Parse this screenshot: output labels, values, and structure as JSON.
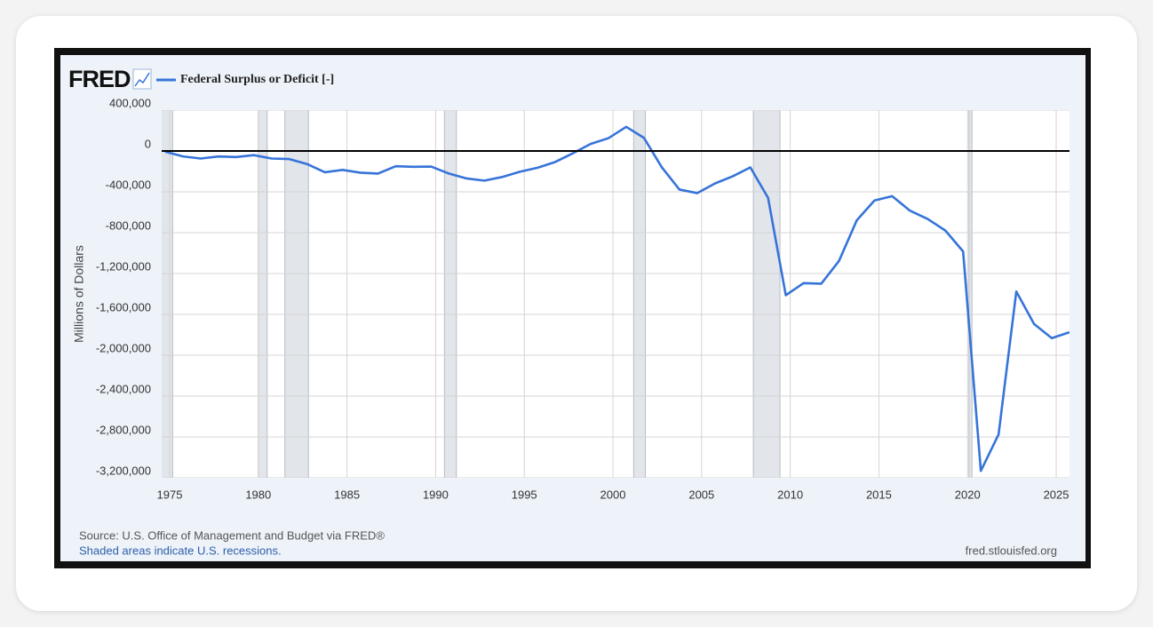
{
  "chart_data": {
    "type": "line",
    "logo": "FRED",
    "y_axis_label": "Millions of Dollars",
    "source": "Source: U.S. Office of Management and Budget via FRED®",
    "note": "Shaded areas indicate U.S. recessions.",
    "site": "fred.stlouisfed.org",
    "x": [
      1974.75,
      1975.75,
      1976.75,
      1977.75,
      1978.75,
      1979.75,
      1980.75,
      1981.75,
      1982.75,
      1983.75,
      1984.75,
      1985.75,
      1986.75,
      1987.75,
      1988.75,
      1989.75,
      1990.75,
      1991.75,
      1992.75,
      1993.75,
      1994.75,
      1995.75,
      1996.75,
      1997.75,
      1998.75,
      1999.75,
      2000.75,
      2001.75,
      2002.75,
      2003.75,
      2004.75,
      2005.75,
      2006.75,
      2007.75,
      2008.75,
      2009.75,
      2010.75,
      2011.75,
      2012.75,
      2013.75,
      2014.75,
      2015.75,
      2016.75,
      2017.75,
      2018.75,
      2019.75,
      2020.75,
      2021.75,
      2022.75,
      2023.75,
      2024.75,
      2025.75
    ],
    "series": [
      {
        "name": "Federal Surplus or Deficit [-]",
        "color": "#3674d9",
        "values": [
          -6135,
          -53242,
          -73732,
          -53659,
          -59185,
          -40726,
          -73830,
          -78968,
          -127977,
          -207802,
          -185367,
          -212308,
          -221227,
          -149730,
          -155178,
          -152639,
          -221036,
          -269238,
          -290321,
          -255051,
          -203186,
          -163952,
          -107431,
          -21884,
          69270,
          125610,
          236241,
          128236,
          -157758,
          -377585,
          -412727,
          -318346,
          -248181,
          -160701,
          -458553,
          -1412688,
          -1294373,
          -1299599,
          -1076573,
          -679775,
          -484602,
          -441960,
          -584651,
          -665446,
          -779137,
          -983592,
          -3132460,
          -2775306,
          -1375905,
          -1693726,
          -1832803,
          -1775000
        ]
      }
    ],
    "recessions": [
      [
        1973.83,
        1975.17
      ],
      [
        1980.0,
        1980.5
      ],
      [
        1981.5,
        1982.83
      ],
      [
        1990.5,
        1991.17
      ],
      [
        2001.17,
        2001.83
      ],
      [
        2007.92,
        2009.42
      ],
      [
        2020.08,
        2020.25
      ]
    ],
    "xlim": [
      1974.55,
      2025.75
    ],
    "xticks": [
      1975,
      1980,
      1985,
      1990,
      1995,
      2000,
      2005,
      2010,
      2015,
      2020,
      2025
    ],
    "ylim": [
      -3200000,
      400000
    ],
    "yticks": [
      {
        "value": 400000,
        "label": "400,000"
      },
      0,
      {
        "value": -400000,
        "label": "-400,000"
      },
      {
        "value": -800000,
        "label": "-800,000"
      },
      {
        "value": -1200000,
        "label": "-1,200,000"
      },
      {
        "value": -1600000,
        "label": "-1,600,000"
      },
      {
        "value": -2000000,
        "label": "-2,000,000"
      },
      {
        "value": -2400000,
        "label": "-2,400,000"
      },
      {
        "value": -2800000,
        "label": "-2,800,000"
      },
      {
        "value": -3200000,
        "label": "-3,200,000"
      }
    ],
    "grid": true
  }
}
